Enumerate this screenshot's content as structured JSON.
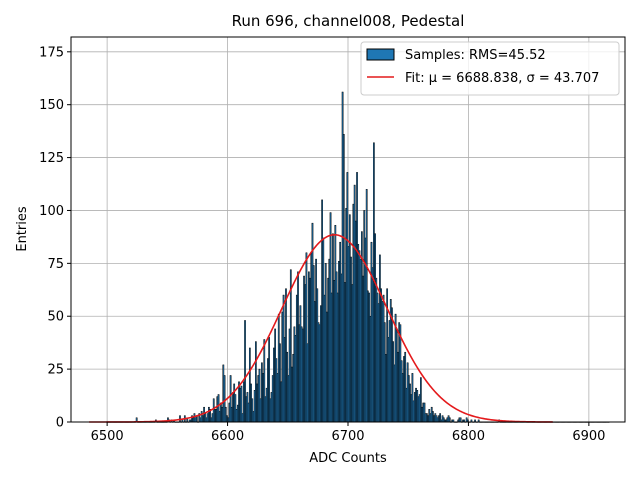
{
  "chart_data": {
    "type": "bar",
    "title": "Run 696, channel008, Pedestal",
    "xlabel": "ADC Counts",
    "ylabel": "Entries",
    "xlim": [
      6470,
      6930
    ],
    "ylim": [
      0,
      182
    ],
    "xticks": [
      6500,
      6600,
      6700,
      6800,
      6900
    ],
    "yticks": [
      0,
      25,
      50,
      75,
      100,
      125,
      150,
      175
    ],
    "grid": true,
    "legend_position": "top-right",
    "histogram": {
      "name": "Samples: RMS=45.52",
      "bin_start": 6500,
      "bin_width": 1,
      "color": "#1f77b4",
      "edge_color": "#000000",
      "counts": [
        0,
        0,
        0,
        0,
        0,
        0,
        0,
        0,
        0,
        0,
        0,
        0,
        0,
        0,
        0,
        0,
        0,
        0,
        0,
        0,
        0,
        0,
        0,
        0,
        2,
        0,
        0,
        0,
        0,
        0,
        0,
        0,
        0,
        0,
        0,
        0,
        0,
        0,
        0,
        0,
        1,
        0,
        0,
        0,
        0,
        0,
        0,
        0,
        0,
        0,
        2,
        1,
        0,
        1,
        0,
        1,
        0,
        0,
        0,
        0,
        3,
        0,
        1,
        0,
        3,
        0,
        2,
        0,
        1,
        1,
        3,
        2,
        4,
        2,
        3,
        0,
        4,
        2,
        5,
        3,
        7,
        4,
        2,
        4,
        7,
        6,
        2,
        4,
        11,
        6,
        6,
        12,
        13,
        5,
        9,
        7,
        27,
        22,
        7,
        3,
        2,
        9,
        22,
        7,
        14,
        18,
        13,
        6,
        8,
        19,
        16,
        17,
        4,
        19,
        48,
        12,
        14,
        9,
        35,
        18,
        11,
        5,
        15,
        38,
        18,
        22,
        25,
        11,
        28,
        23,
        39,
        12,
        16,
        30,
        40,
        11,
        14,
        22,
        35,
        44,
        30,
        23,
        51,
        37,
        19,
        52,
        60,
        40,
        63,
        33,
        22,
        44,
        72,
        26,
        32,
        45,
        41,
        60,
        71,
        46,
        55,
        45,
        44,
        69,
        65,
        80,
        37,
        71,
        68,
        80,
        94,
        74,
        57,
        77,
        63,
        47,
        46,
        55,
        105,
        87,
        60,
        75,
        52,
        68,
        77,
        99,
        61,
        89,
        67,
        93,
        71,
        61,
        76,
        85,
        70,
        156,
        136,
        66,
        101,
        118,
        83,
        98,
        78,
        65,
        103,
        112,
        95,
        118,
        84,
        81,
        77,
        90,
        69,
        100,
        87,
        110,
        62,
        61,
        50,
        85,
        73,
        132,
        89,
        68,
        61,
        56,
        79,
        63,
        57,
        60,
        47,
        32,
        63,
        40,
        48,
        58,
        54,
        38,
        27,
        51,
        44,
        33,
        47,
        46,
        29,
        23,
        31,
        33,
        16,
        28,
        22,
        18,
        13,
        23,
        10,
        14,
        16,
        15,
        12,
        13,
        21,
        7,
        9,
        9,
        4,
        4,
        3,
        6,
        4,
        7,
        5,
        3,
        4,
        3,
        2,
        3,
        4,
        1,
        3,
        2,
        1,
        1,
        2,
        3,
        2,
        0,
        1,
        1,
        0,
        0,
        0,
        1,
        2,
        2,
        0,
        1,
        1,
        0,
        2,
        1,
        0,
        0,
        1,
        0,
        0,
        1,
        0,
        0,
        1,
        0,
        0,
        0,
        0,
        0,
        0,
        0,
        0,
        0,
        0,
        0,
        0,
        0,
        0,
        0,
        0,
        1,
        0,
        0,
        0,
        0,
        0,
        0,
        0,
        0,
        0,
        0,
        0,
        0,
        0,
        0,
        0,
        0,
        0,
        0,
        0,
        0,
        0,
        0,
        0,
        0,
        0,
        0,
        0,
        0,
        0,
        0,
        0,
        0,
        0,
        0,
        0,
        0,
        0,
        0,
        0,
        0,
        0,
        0,
        0,
        0,
        0,
        0,
        0,
        0,
        0,
        0,
        0,
        0,
        0,
        0,
        0,
        0,
        0,
        0,
        0,
        0,
        0,
        0,
        0,
        0,
        0,
        0,
        0,
        0,
        0,
        0,
        0,
        0,
        0,
        0,
        0,
        0,
        0,
        0,
        0,
        0,
        0,
        0,
        0,
        0,
        0,
        0,
        0,
        0,
        0,
        0,
        0
      ]
    },
    "fit": {
      "name": "Fit: μ = 6688.838, σ = 43.707",
      "mu": 6688.838,
      "sigma": 43.707,
      "amplitude": 88.5,
      "x_range": [
        6485,
        6870
      ],
      "color": "#e41a1c"
    }
  }
}
